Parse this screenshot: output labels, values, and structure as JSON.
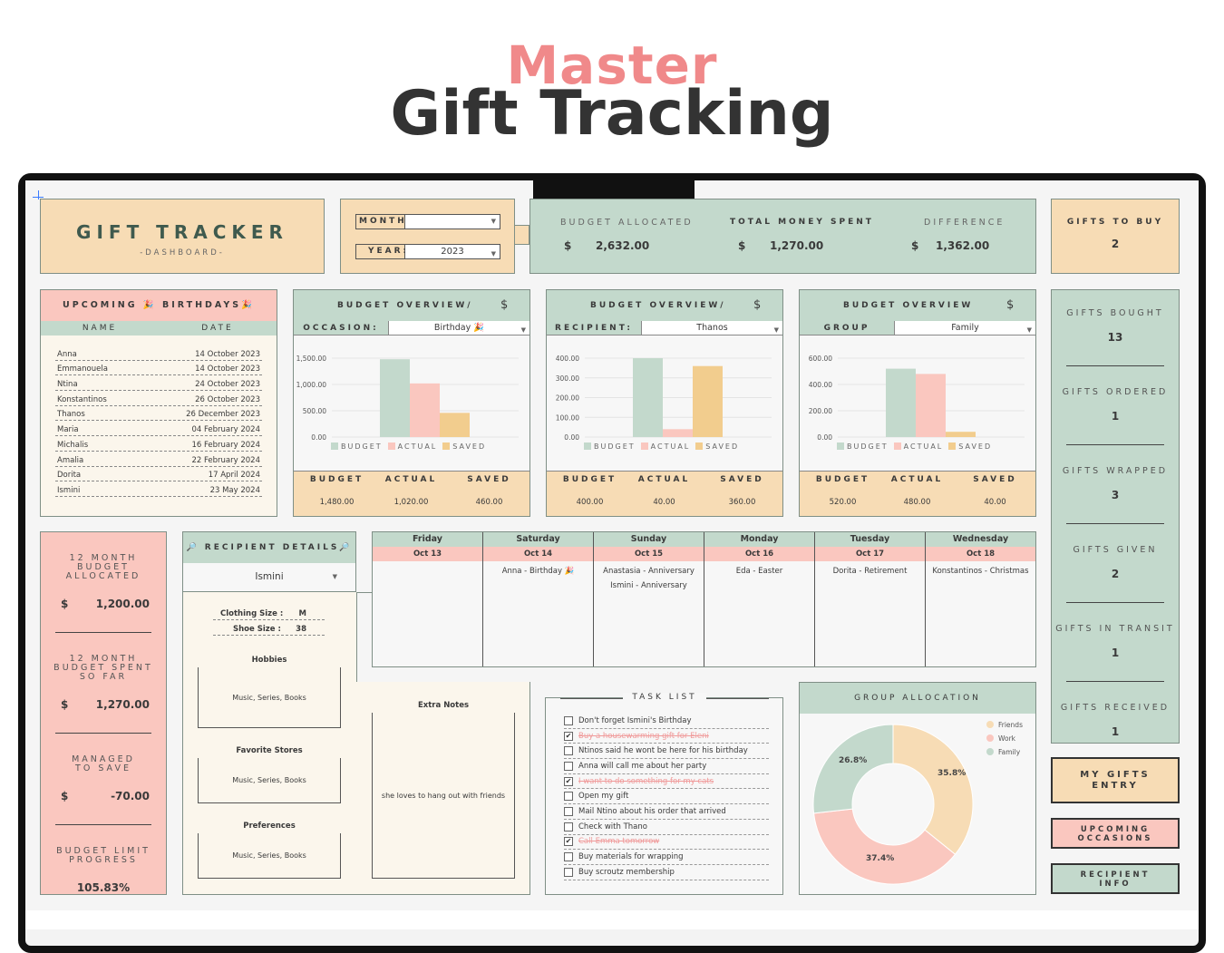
{
  "hero": {
    "line1": "Master",
    "line2": "Gift Tracking"
  },
  "title_box": {
    "title": "GIFT  TRACKER",
    "subtitle": "-DASHBOARD-"
  },
  "filters": {
    "month_label": "MONTH:",
    "month_value": "",
    "year_label": "YEAR:",
    "year_value": "2023"
  },
  "totals": {
    "budget_allocated_label": "BUDGET ALLOCATED",
    "budget_allocated": "2,632.00",
    "total_spent_label": "TOTAL MONEY SPENT",
    "total_spent": "1,270.00",
    "difference_label": "DIFFERENCE",
    "difference": "1,362.00",
    "currency": "$"
  },
  "gifts_to_buy": {
    "label": "GIFTS TO BUY",
    "value": "2"
  },
  "birthdays": {
    "title": "UPCOMING 🎉 BIRTHDAYS🎉",
    "col_name": "NAME",
    "col_date": "DATE",
    "rows": [
      {
        "name": "Anna",
        "date": "14 October 2023"
      },
      {
        "name": "Emmanouela",
        "date": "14 October 2023"
      },
      {
        "name": "Ntina",
        "date": "24 October 2023"
      },
      {
        "name": "Konstantinos",
        "date": "26 October 2023"
      },
      {
        "name": "Thanos",
        "date": "26 December 2023"
      },
      {
        "name": "Maria",
        "date": "04 February 2024"
      },
      {
        "name": "Michalis",
        "date": "16 February 2024"
      },
      {
        "name": "Amalia",
        "date": "22 February 2024"
      },
      {
        "name": "Dorita",
        "date": "17 April 2024"
      },
      {
        "name": "Ismini",
        "date": "23 May 2024"
      }
    ]
  },
  "budget_panels": [
    {
      "title": "BUDGET OVERVIEW/",
      "currency": "$",
      "filter_label": "OCCASION:",
      "filter_value": "Birthday 🎉",
      "ticks": [
        "1,500.00",
        "1,000.00",
        "500.00",
        "0.00"
      ],
      "ymax": 1500,
      "values": {
        "budget": 1480,
        "actual": 1020,
        "saved": 460
      },
      "footer": {
        "budget": "1,480.00",
        "actual": "1,020.00",
        "saved": "460.00"
      }
    },
    {
      "title": "BUDGET OVERVIEW/",
      "currency": "$",
      "filter_label": "RECIPIENT:",
      "filter_value": "Thanos",
      "ticks": [
        "400.00",
        "300.00",
        "200.00",
        "100.00",
        "0.00"
      ],
      "ymax": 400,
      "values": {
        "budget": 400,
        "actual": 40,
        "saved": 360
      },
      "footer": {
        "budget": "400.00",
        "actual": "40.00",
        "saved": "360.00"
      }
    },
    {
      "title": "BUDGET OVERVIEW",
      "currency": "$",
      "filter_label": "GROUP",
      "filter_value": "Family",
      "ticks": [
        "600.00",
        "400.00",
        "200.00",
        "0.00"
      ],
      "ymax": 600,
      "values": {
        "budget": 520,
        "actual": 480,
        "saved": 40
      },
      "footer": {
        "budget": "520.00",
        "actual": "480.00",
        "saved": "40.00"
      }
    }
  ],
  "legend": {
    "budget": "BUDGET",
    "actual": "ACTUAL",
    "saved": "SAVED"
  },
  "footer_labels": {
    "budget": "BUDGET",
    "actual": "ACTUAL",
    "saved": "SAVED"
  },
  "left_stats": {
    "alloc_label": "12 MONTH BUDGET ALLOCATED",
    "alloc": "1,200.00",
    "spent_label": "12 MONTH BUDGET SPENT SO FAR",
    "spent": "1,270.00",
    "save_label": "MANAGED TO SAVE",
    "save": "-70.00",
    "limit_label": "BUDGET LIMIT PROGRESS",
    "limit": "105.83%",
    "currency": "$"
  },
  "recipient": {
    "title": "🔎 RECIPIENT DETAILS🔎",
    "name": "Ismini",
    "clothing_label": "Clothing Size :",
    "clothing": "M",
    "shoe_label": "Shoe Size :",
    "shoe": "38",
    "hobbies_label": "Hobbies",
    "hobbies": "Music, Series, Books",
    "stores_label": "Favorite Stores",
    "stores": "Music, Series, Books",
    "prefs_label": "Preferences",
    "prefs": "Music, Series, Books",
    "notes_label": "Extra Notes",
    "notes": "she loves to hang out with friends"
  },
  "calendar": [
    {
      "day": "Friday",
      "date": "Oct 13",
      "events": []
    },
    {
      "day": "Saturday",
      "date": "Oct 14",
      "events": [
        "Anna - Birthday 🎉"
      ]
    },
    {
      "day": "Sunday",
      "date": "Oct 15",
      "events": [
        "Anastasia - Anniversary",
        "Ismini - Anniversary"
      ]
    },
    {
      "day": "Monday",
      "date": "Oct 16",
      "events": [
        "Eda - Easter"
      ]
    },
    {
      "day": "Tuesday",
      "date": "Oct 17",
      "events": [
        "Dorita - Retirement"
      ]
    },
    {
      "day": "Wednesday",
      "date": "Oct 18",
      "events": [
        "Konstantinos - Christmas"
      ]
    }
  ],
  "tasks": {
    "title": "TASK LIST",
    "items": [
      {
        "text": "Don't forget Ismini's Birthday",
        "done": false
      },
      {
        "text": "Buy a housewarming gift for Eleni",
        "done": true
      },
      {
        "text": "Ntinos said he wont be here for his birthday",
        "done": false
      },
      {
        "text": "Anna will call me about her party",
        "done": false
      },
      {
        "text": "I want to do something for my cats",
        "done": true
      },
      {
        "text": "Open my gift",
        "done": false
      },
      {
        "text": "Mail Ntino about his order that arrived",
        "done": false
      },
      {
        "text": "Check with Thano",
        "done": false
      },
      {
        "text": "Call Emma tomorrow",
        "done": true
      },
      {
        "text": "Buy materials for wrapping",
        "done": false
      },
      {
        "text": "Buy scroutz membership",
        "done": false
      }
    ]
  },
  "group_allocation": {
    "title": "GROUP ALLOCATION",
    "slices": [
      {
        "name": "Friends",
        "value": 35.8,
        "label": "35.8%",
        "color": "#f7dcb5"
      },
      {
        "name": "Work",
        "value": 37.4,
        "label": "37.4%",
        "color": "#fac7bf"
      },
      {
        "name": "Family",
        "value": 26.8,
        "label": "26.8%",
        "color": "#c3d9cc"
      }
    ]
  },
  "side_stats": [
    {
      "label": "GIFTS BOUGHT",
      "value": "13"
    },
    {
      "label": "GIFTS ORDERED",
      "value": "1"
    },
    {
      "label": "GIFTS WRAPPED",
      "value": "3"
    },
    {
      "label": "GIFTS GIVEN",
      "value": "2"
    },
    {
      "label": "GIFTS IN TRANSIT",
      "value": "1"
    },
    {
      "label": "GIFTS RECEIVED",
      "value": "1"
    }
  ],
  "nav_buttons": {
    "my_gifts": "MY GIFTS ENTRY",
    "upcoming": "UPCOMING OCCASIONS",
    "recipient": "RECIPIENT INFO"
  },
  "colors": {
    "budget": "#c3d9cc",
    "actual": "#fac7bf",
    "saved": "#f2cd8e",
    "peach": "#f7dcb5",
    "sage": "#c3d9cc",
    "pink": "#fac7bf"
  }
}
